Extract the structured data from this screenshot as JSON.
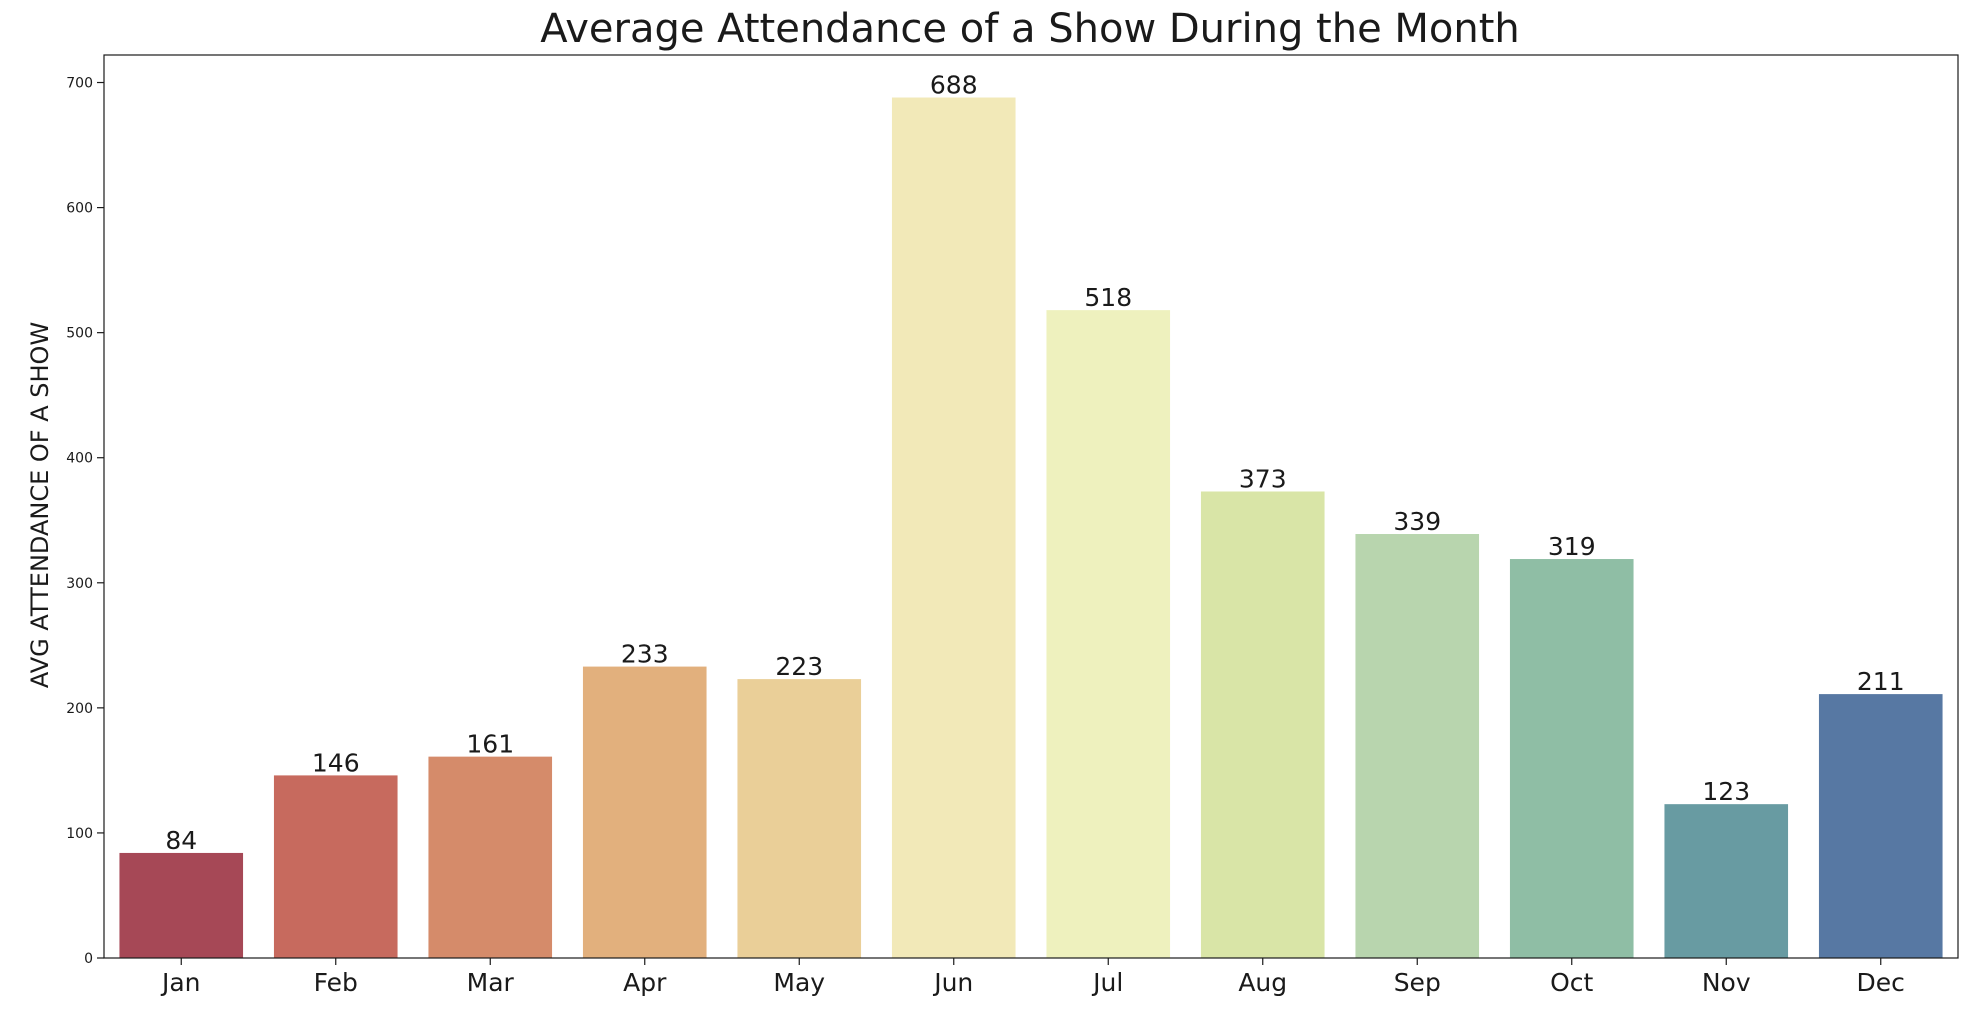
{
  "chart_data": {
    "type": "bar",
    "title": "Average Attendance of a Show During the Month",
    "xlabel": "",
    "ylabel": "AVG ATTENDANCE OF A SHOW",
    "categories": [
      "Jan",
      "Feb",
      "Mar",
      "Apr",
      "May",
      "Jun",
      "Jul",
      "Aug",
      "Sep",
      "Oct",
      "Nov",
      "Dec"
    ],
    "values": [
      84,
      146,
      161,
      233,
      223,
      688,
      518,
      373,
      339,
      319,
      123,
      211
    ],
    "data_labels": [
      "84",
      "146",
      "161",
      "233",
      "223",
      "688",
      "518",
      "373",
      "339",
      "319",
      "123",
      "211"
    ],
    "colors": [
      "#a64856",
      "#c76a5e",
      "#d58b6a",
      "#e2b07d",
      "#eacf98",
      "#f2e9b8",
      "#eef1be",
      "#d9e5a7",
      "#b8d5ae",
      "#8fbea5",
      "#689ba2",
      "#5778a3"
    ],
    "ylim": [
      0,
      722
    ],
    "yticks": [
      0,
      100,
      200,
      300,
      400,
      500,
      600,
      700
    ],
    "ytick_labels": [
      "0",
      "100",
      "200",
      "300",
      "400",
      "500",
      "600",
      "700"
    ],
    "grid": false,
    "legend": "none"
  }
}
